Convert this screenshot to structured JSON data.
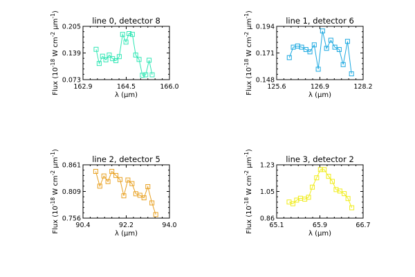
{
  "chart_data": [
    {
      "type": "line",
      "title": "line 0, detector 8",
      "xlabel": "λ (µm)",
      "ylabel": "Flux (10^-18 W cm^-2 µm^-1)",
      "color": "#2fe6b4",
      "xlim": [
        162.9,
        166.0
      ],
      "ylim": [
        0.073,
        0.205
      ],
      "xticks": [
        "162.9",
        "164.5",
        "166.0"
      ],
      "yticks": [
        "0.073",
        "0.139",
        "0.205"
      ],
      "marker": "square",
      "x": [
        163.37,
        163.48,
        163.6,
        163.72,
        163.84,
        163.96,
        164.08,
        164.2,
        164.32,
        164.44,
        164.55,
        164.67,
        164.79,
        164.91,
        165.03,
        165.15,
        165.27,
        165.38
      ],
      "y": [
        0.148,
        0.113,
        0.131,
        0.122,
        0.134,
        0.125,
        0.12,
        0.13,
        0.185,
        0.166,
        0.187,
        0.185,
        0.134,
        0.123,
        0.084,
        0.085,
        0.121,
        0.085
      ]
    },
    {
      "type": "line",
      "title": "line 1, detector 6",
      "xlabel": "λ (µm)",
      "ylabel": "Flux (10^-18 W cm^-2 µm^-1)",
      "color": "#1aa8e0",
      "xlim": [
        125.6,
        128.2
      ],
      "ylim": [
        0.148,
        0.194
      ],
      "xticks": [
        "125.6",
        "126.9",
        "128.2"
      ],
      "yticks": [
        "0.148",
        "0.171",
        "0.194"
      ],
      "marker": "square",
      "x": [
        125.98,
        126.1,
        126.23,
        126.35,
        126.48,
        126.6,
        126.73,
        126.85,
        126.98,
        127.1,
        127.23,
        127.35,
        127.48,
        127.6,
        127.73,
        127.85
      ],
      "y": [
        0.167,
        0.176,
        0.177,
        0.176,
        0.174,
        0.172,
        0.178,
        0.157,
        0.19,
        0.175,
        0.182,
        0.176,
        0.174,
        0.161,
        0.181,
        0.153
      ]
    },
    {
      "type": "line",
      "title": "line 2, detector 5",
      "xlabel": "λ (µm)",
      "ylabel": "Flux (10^-18 W cm^-2 µm^-1)",
      "color": "#e8a020",
      "xlim": [
        90.4,
        94.0
      ],
      "ylim": [
        0.756,
        0.861
      ],
      "xticks": [
        "90.4",
        "92.2",
        "94.0"
      ],
      "yticks": [
        "0.756",
        "0.809",
        "0.861"
      ],
      "marker": "square",
      "x": [
        90.93,
        91.1,
        91.27,
        91.44,
        91.6,
        91.77,
        91.94,
        92.1,
        92.27,
        92.44,
        92.6,
        92.77,
        92.94,
        93.1,
        93.27,
        93.43
      ],
      "y": [
        0.848,
        0.819,
        0.839,
        0.828,
        0.848,
        0.84,
        0.832,
        0.8,
        0.831,
        0.824,
        0.804,
        0.801,
        0.796,
        0.818,
        0.786,
        0.763
      ]
    },
    {
      "type": "line",
      "title": "line 3, detector 2",
      "xlabel": "λ (µm)",
      "ylabel": "Flux (10^-18 W cm^-2 µm^-1)",
      "color": "#f0ec18",
      "xlim": [
        65.1,
        66.7
      ],
      "ylim": [
        0.86,
        1.23
      ],
      "xticks": [
        "65.1",
        "65.9",
        "66.7"
      ],
      "yticks": [
        "0.86",
        "1.05",
        "1.23"
      ],
      "marker": "square",
      "x": [
        65.33,
        65.4,
        65.47,
        65.54,
        65.62,
        65.69,
        65.76,
        65.84,
        65.91,
        65.98,
        66.06,
        66.13,
        66.2,
        66.27,
        66.35,
        66.42,
        66.49
      ],
      "y": [
        0.972,
        0.96,
        0.985,
        0.998,
        0.992,
        1.005,
        1.075,
        1.14,
        1.197,
        1.197,
        1.15,
        1.115,
        1.058,
        1.048,
        1.03,
        0.996,
        0.932
      ]
    }
  ]
}
